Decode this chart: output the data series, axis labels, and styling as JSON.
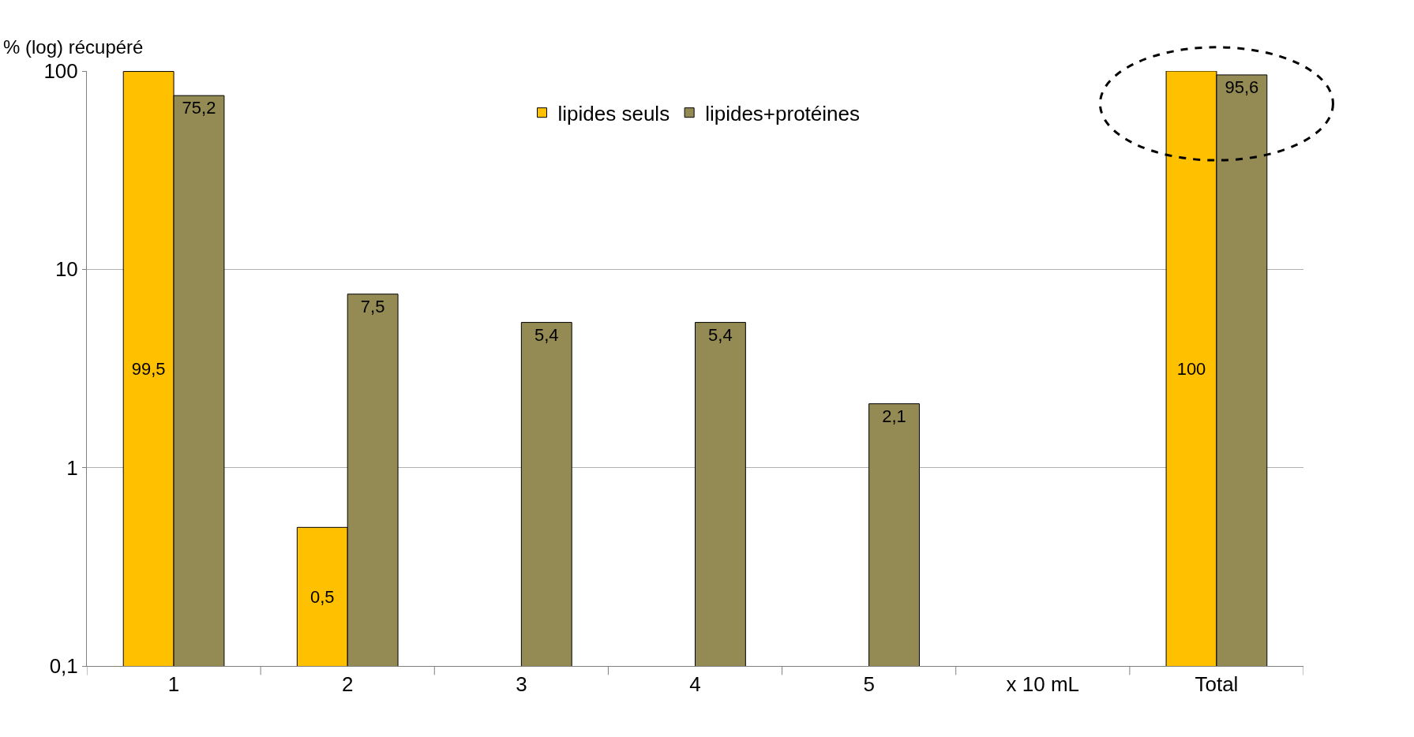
{
  "chart_data": {
    "type": "bar",
    "ylabel": "% (log) récupéré",
    "categories": [
      "1",
      "2",
      "3",
      "4",
      "5",
      "x 10 mL",
      "Total"
    ],
    "series": [
      {
        "name": "lipides seuls",
        "color": "#ffc000",
        "values": [
          99.5,
          0.5,
          null,
          null,
          null,
          null,
          100
        ],
        "value_labels": [
          "99,5",
          "0,5",
          null,
          null,
          null,
          null,
          "100"
        ]
      },
      {
        "name": "lipides+protéines",
        "color": "#948a54",
        "values": [
          75.2,
          7.5,
          5.4,
          5.4,
          2.1,
          null,
          95.6
        ],
        "value_labels": [
          "75,2",
          "7,5",
          "5,4",
          "5,4",
          "2,1",
          null,
          "95,6"
        ]
      }
    ],
    "log": true,
    "ylim": [
      0.1,
      100
    ],
    "yticks": [
      {
        "value": 0.1,
        "label": "0,1"
      },
      1,
      10,
      100
    ],
    "grid": "y",
    "legend": "top"
  }
}
